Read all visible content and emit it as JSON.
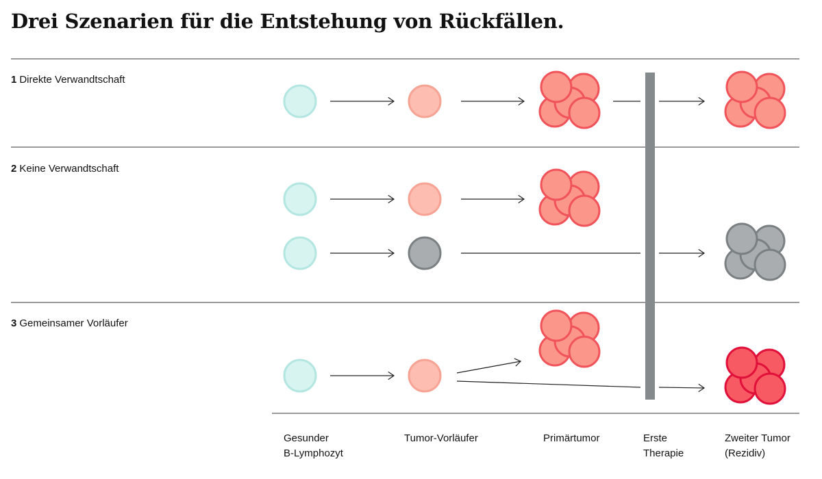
{
  "title": "Drei Szenarien für die Entstehung von Rückfällen.",
  "scenarios": [
    {
      "number": "1",
      "label": "Direkte Verwandtschaft"
    },
    {
      "number": "2",
      "label": "Keine Verwandtschaft"
    },
    {
      "number": "3",
      "label": "Gemeinsamer Vorläufer"
    }
  ],
  "stages": [
    {
      "line1": "Gesunder",
      "line2": "B-Lymphozyt"
    },
    {
      "line1": "Tumor-Vorläufer",
      "line2": ""
    },
    {
      "line1": "Primärtumor",
      "line2": ""
    },
    {
      "line1": "Erste",
      "line2": "Therapie"
    },
    {
      "line1": "Zweiter Tumor",
      "line2": "(Rezidiv)"
    }
  ],
  "colors": {
    "healthy_fill": "#d8f4f1",
    "healthy_stroke": "#b3e6e1",
    "precursor_fill": "#fdbdb1",
    "precursor_stroke": "#f7a394",
    "tumor_fill": "#fb968a",
    "tumor_stroke": "#f0545a",
    "grey_fill": "#a9adaf",
    "grey_stroke": "#7b8083",
    "relapse_fill": "#f75a62",
    "relapse_stroke": "#e0103a",
    "therapy_bar": "#858b8c"
  }
}
